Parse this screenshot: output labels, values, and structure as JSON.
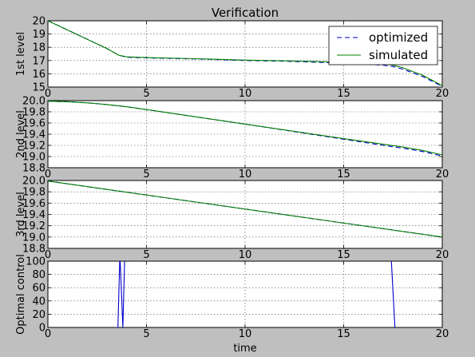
{
  "chart_data": {
    "type": "line",
    "title": "Verification",
    "xlabel": "time",
    "grid": true,
    "legend": {
      "placement": "top-right",
      "entries": [
        {
          "name": "optimized",
          "color": "#0000cc",
          "style": "dashed"
        },
        {
          "name": "simulated",
          "color": "#007f00",
          "style": "solid"
        }
      ]
    },
    "subplots": [
      {
        "ylabel": "1st level",
        "xlim": [
          0,
          20
        ],
        "ylim": [
          15,
          20
        ],
        "xticks": [
          "0",
          "5",
          "10",
          "15",
          "20"
        ],
        "yticks": [
          "15",
          "16",
          "17",
          "18",
          "19",
          "20"
        ],
        "series": [
          {
            "name": "optimized",
            "color": "#0000cc",
            "style": "dashed",
            "x": [
              0,
              1,
              2,
              3,
              3.6,
              4,
              5,
              8,
              10,
              12,
              15,
              16,
              17,
              17.5,
              18,
              19,
              20
            ],
            "y": [
              20,
              19.3,
              18.6,
              17.9,
              17.4,
              17.25,
              17.2,
              17.1,
              17.0,
              16.95,
              16.8,
              16.75,
              16.65,
              16.55,
              16.35,
              15.8,
              15.05
            ]
          },
          {
            "name": "simulated",
            "color": "#007f00",
            "style": "solid",
            "x": [
              0,
              1,
              2,
              3,
              3.6,
              4,
              5,
              8,
              10,
              12,
              15,
              16,
              17,
              17.5,
              18,
              19,
              20
            ],
            "y": [
              20,
              19.3,
              18.6,
              17.9,
              17.4,
              17.28,
              17.22,
              17.12,
              17.03,
              16.98,
              16.87,
              16.83,
              16.75,
              16.65,
              16.45,
              15.9,
              15.1
            ]
          }
        ]
      },
      {
        "ylabel": "2nd level",
        "xlim": [
          0,
          20
        ],
        "ylim": [
          18.8,
          20.0
        ],
        "xticks": [
          "0",
          "5",
          "10",
          "15",
          "20"
        ],
        "yticks": [
          "18.8",
          "19.0",
          "19.2",
          "19.4",
          "19.6",
          "19.8",
          "20.0"
        ],
        "series": [
          {
            "name": "optimized",
            "color": "#0000cc",
            "style": "dashed",
            "x": [
              0,
              1,
              2,
              3,
              4,
              5,
              10,
              15,
              17,
              18,
              19,
              20
            ],
            "y": [
              19.99,
              19.98,
              19.96,
              19.93,
              19.89,
              19.84,
              19.58,
              19.31,
              19.2,
              19.15,
              19.09,
              19.01
            ]
          },
          {
            "name": "simulated",
            "color": "#007f00",
            "style": "solid",
            "x": [
              0,
              1,
              2,
              3,
              4,
              5,
              10,
              15,
              17,
              18,
              19,
              20
            ],
            "y": [
              19.99,
              19.98,
              19.96,
              19.93,
              19.89,
              19.84,
              19.58,
              19.32,
              19.22,
              19.17,
              19.11,
              19.03
            ]
          }
        ]
      },
      {
        "ylabel": "3rd level",
        "xlim": [
          0,
          20
        ],
        "ylim": [
          18.8,
          20.0
        ],
        "xticks": [
          "0",
          "5",
          "10",
          "15",
          "20"
        ],
        "yticks": [
          "18.8",
          "19.0",
          "19.2",
          "19.4",
          "19.6",
          "19.8",
          "20.0"
        ],
        "series": [
          {
            "name": "optimized",
            "color": "#0000cc",
            "style": "dashed",
            "x": [
              0,
              20
            ],
            "y": [
              19.99,
              19.0
            ]
          },
          {
            "name": "simulated",
            "color": "#007f00",
            "style": "solid",
            "x": [
              0,
              20
            ],
            "y": [
              19.99,
              19.0
            ]
          }
        ]
      },
      {
        "ylabel": "Optimal control",
        "xlim": [
          0,
          20
        ],
        "ylim": [
          0,
          100
        ],
        "xticks": [
          "0",
          "5",
          "10",
          "15",
          "20"
        ],
        "yticks": [
          "0",
          "20",
          "40",
          "60",
          "80",
          "100"
        ],
        "series": [
          {
            "name": "optimal control",
            "color": "#0000cc",
            "style": "solid",
            "x": [
              3.45,
              3.55,
              3.65,
              3.8,
              3.9,
              17.4,
              17.6
            ],
            "y": [
              0,
              0,
              110,
              0,
              110,
              110,
              0
            ]
          }
        ]
      }
    ]
  }
}
